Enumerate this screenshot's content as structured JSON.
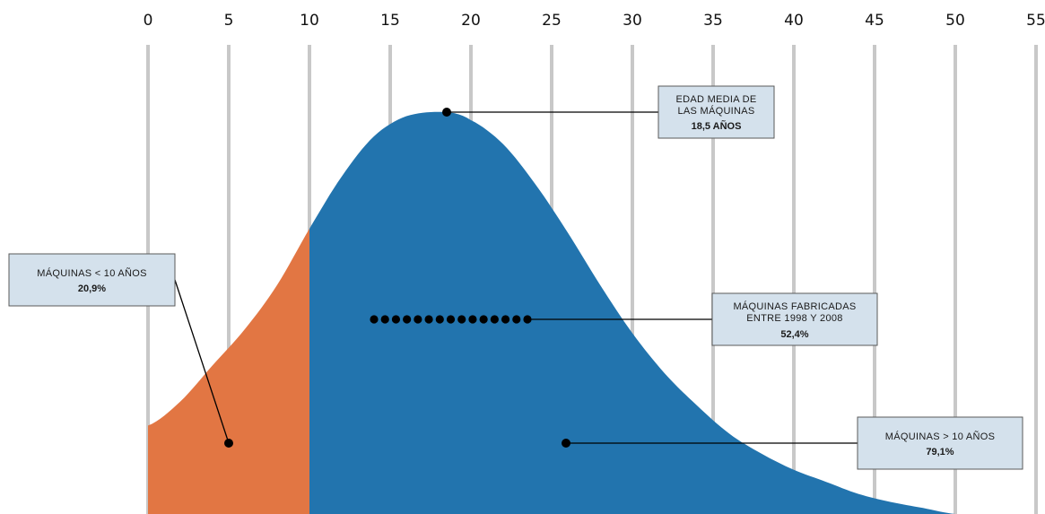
{
  "chart_data": {
    "type": "area",
    "title": "",
    "xlabel": "",
    "ylabel": "",
    "x_ticks": [
      0,
      5,
      10,
      15,
      20,
      25,
      30,
      35,
      40,
      45,
      50,
      55
    ],
    "xlim": [
      0,
      55
    ],
    "grid": "vertical",
    "distribution": {
      "description_mode": "bell-shaped age distribution of machines (years)",
      "peak_x": 18.5,
      "x": [
        0,
        2,
        4,
        6,
        8,
        10,
        12,
        14,
        16,
        18.5,
        20,
        22,
        24,
        26,
        28,
        30,
        32,
        34,
        36,
        38,
        40,
        42,
        44,
        46,
        48,
        50
      ],
      "y": [
        0.22,
        0.28,
        0.37,
        0.46,
        0.57,
        0.71,
        0.84,
        0.94,
        0.99,
        1.0,
        0.98,
        0.92,
        0.82,
        0.7,
        0.57,
        0.45,
        0.35,
        0.27,
        0.2,
        0.15,
        0.11,
        0.08,
        0.05,
        0.03,
        0.015,
        0.0
      ]
    },
    "segments": [
      {
        "name": "Máquinas < 10 años",
        "x_range": [
          0,
          10
        ],
        "share": 20.9,
        "color": "#e27643"
      },
      {
        "name": "Máquinas > 10 años",
        "x_range": [
          10,
          50
        ],
        "share": 79.1,
        "color": "#2274ae"
      }
    ],
    "range_marker": {
      "x_start": 14,
      "x_end": 23.5,
      "dots": 15
    },
    "colors": {
      "grid": "#c8c8c8",
      "box_fill": "#d4e1ec",
      "box_stroke": "#5a5a5a",
      "marker": "#000000"
    }
  },
  "annotations": {
    "mean_age": {
      "line1": "EDAD MEDIA DE",
      "line2": "LAS MÁQUINAS",
      "value": "18,5 AÑOS"
    },
    "young": {
      "line1": "MÁQUINAS < 10 AÑOS",
      "value": "20,9%"
    },
    "made_1998_2008": {
      "line1": "MÁQUINAS FABRICADAS",
      "line2": "ENTRE 1998 Y 2008",
      "value": "52,4%"
    },
    "old": {
      "line1": "MÁQUINAS > 10 AÑOS",
      "value": "79,1%"
    }
  }
}
